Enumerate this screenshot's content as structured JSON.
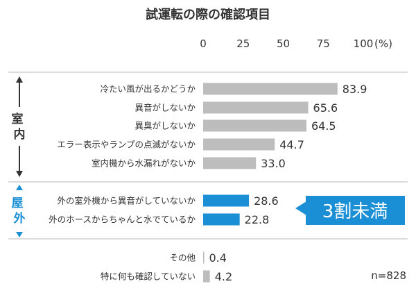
{
  "chart_data": {
    "type": "bar",
    "orientation": "horizontal",
    "title": "試運転の際の確認項目",
    "xlim": [
      0,
      100
    ],
    "x_ticks": [
      "0",
      "25",
      "50",
      "75",
      "100"
    ],
    "x_unit": "(%)",
    "groups": [
      {
        "name": "室内",
        "color": "#bdbdbd",
        "categories": [
          "冷たい風が出るかどうか",
          "異音がしないか",
          "異臭がしないか",
          "エラー表示やランプの点滅がないか",
          "室内機から水漏れがないか"
        ],
        "values": [
          83.9,
          65.6,
          64.5,
          44.7,
          33.0
        ],
        "labels": [
          "83.9",
          "65.6",
          "64.5",
          "44.7",
          "33.0"
        ]
      },
      {
        "name": "屋外",
        "color": "#1a8fd6",
        "categories": [
          "外の室外機から異音がしていないか",
          "外のホースからちゃんと水でているか"
        ],
        "values": [
          28.6,
          22.8
        ],
        "labels": [
          "28.6",
          "22.8"
        ]
      },
      {
        "name": "",
        "color": "#bdbdbd",
        "categories": [
          "その他",
          "特に何も確認していない"
        ],
        "values": [
          0.4,
          4.2
        ],
        "labels": [
          "0.4",
          "4.2"
        ]
      }
    ],
    "annotations": {
      "callout": "3割未満",
      "sample_size": "n=828"
    },
    "grid": false,
    "legend": "none"
  },
  "colors": {
    "indoor_bar": "#bdbdbd",
    "outdoor_bar": "#1a8fd6",
    "accent": "#1a8fd6",
    "divider": "#b8b8b8"
  }
}
